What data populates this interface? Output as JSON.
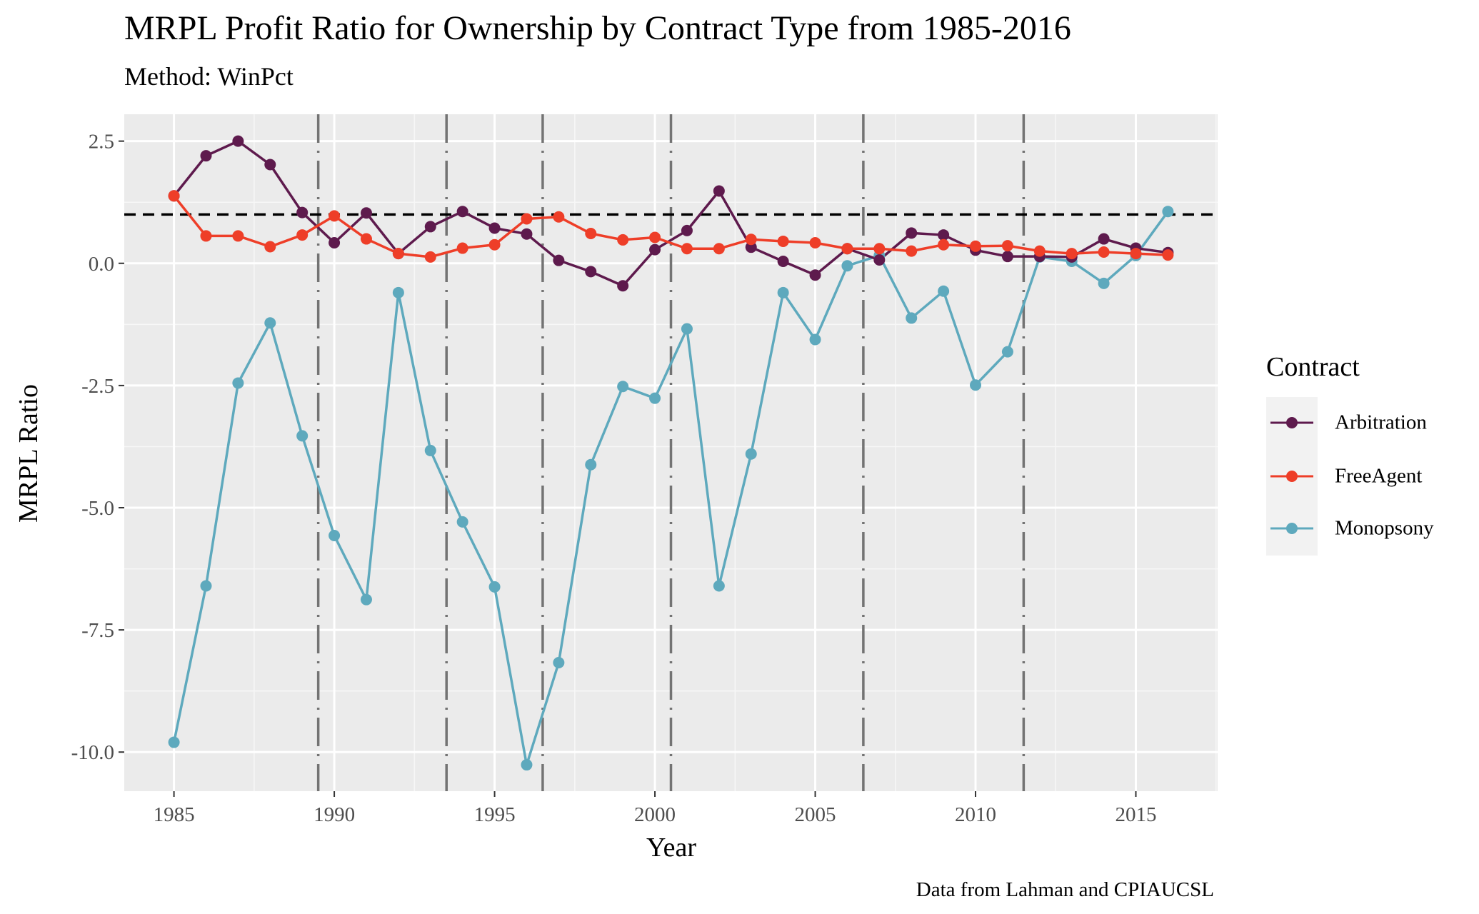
{
  "chart_data": {
    "type": "line",
    "title": "MRPL Profit Ratio for Ownership by Contract Type from 1985-2016",
    "subtitle": "Method: WinPct",
    "caption": "Data from Lahman and CPIAUCSL",
    "xlabel": "Year",
    "ylabel": "MRPL Ratio",
    "xlim": [
      1983.45,
      2017.55
    ],
    "ylim": [
      -10.8,
      3.05
    ],
    "x_ticks": [
      1985,
      1990,
      1995,
      2000,
      2005,
      2010,
      2015
    ],
    "y_ticks": [
      2.5,
      0.0,
      -2.5,
      -5.0,
      -7.5,
      -10.0
    ],
    "y_tick_labels": [
      "2.5",
      "0.0",
      "-2.5",
      "-5.0",
      "-7.5",
      "-10.0"
    ],
    "hline": 1.0,
    "vlines": [
      1989.5,
      1993.5,
      1996.5,
      2000.5,
      2006.5,
      2011.5
    ],
    "grid": true,
    "legend_position": "right",
    "legend_title": "Contract",
    "x": [
      1985,
      1986,
      1987,
      1988,
      1989,
      1990,
      1991,
      1992,
      1993,
      1994,
      1995,
      1996,
      1997,
      1998,
      1999,
      2000,
      2001,
      2002,
      2003,
      2004,
      2005,
      2006,
      2007,
      2008,
      2009,
      2010,
      2011,
      2012,
      2013,
      2014,
      2015,
      2016
    ],
    "series": [
      {
        "name": "Arbitration",
        "color": "#5e1a4d",
        "values": [
          1.38,
          2.2,
          2.5,
          2.02,
          1.04,
          0.42,
          1.03,
          0.2,
          0.75,
          1.06,
          0.72,
          0.6,
          0.06,
          -0.17,
          -0.46,
          0.28,
          0.67,
          1.48,
          0.33,
          0.04,
          -0.24,
          0.3,
          0.07,
          0.62,
          0.58,
          0.27,
          0.14,
          0.14,
          0.13,
          0.5,
          0.31,
          0.22
        ]
      },
      {
        "name": "FreeAgent",
        "color": "#ee3e28",
        "values": [
          1.38,
          0.56,
          0.56,
          0.34,
          0.58,
          0.97,
          0.5,
          0.2,
          0.13,
          0.31,
          0.38,
          0.91,
          0.95,
          0.61,
          0.48,
          0.53,
          0.3,
          0.3,
          0.49,
          0.45,
          0.42,
          0.3,
          0.3,
          0.25,
          0.38,
          0.35,
          0.36,
          0.25,
          0.2,
          0.23,
          0.2,
          0.17
        ]
      },
      {
        "name": "Monopsony",
        "color": "#5ea9bd",
        "values": [
          -9.8,
          -6.6,
          -2.45,
          -1.22,
          -3.53,
          -5.57,
          -6.88,
          -0.6,
          -3.83,
          -5.29,
          -6.62,
          -10.26,
          -8.17,
          -4.12,
          -2.52,
          -2.76,
          -1.34,
          -6.6,
          -3.9,
          -0.6,
          -1.56,
          -0.05,
          0.16,
          -1.12,
          -0.57,
          -2.49,
          -1.81,
          0.13,
          0.04,
          -0.41,
          0.16,
          1.06
        ]
      }
    ]
  }
}
